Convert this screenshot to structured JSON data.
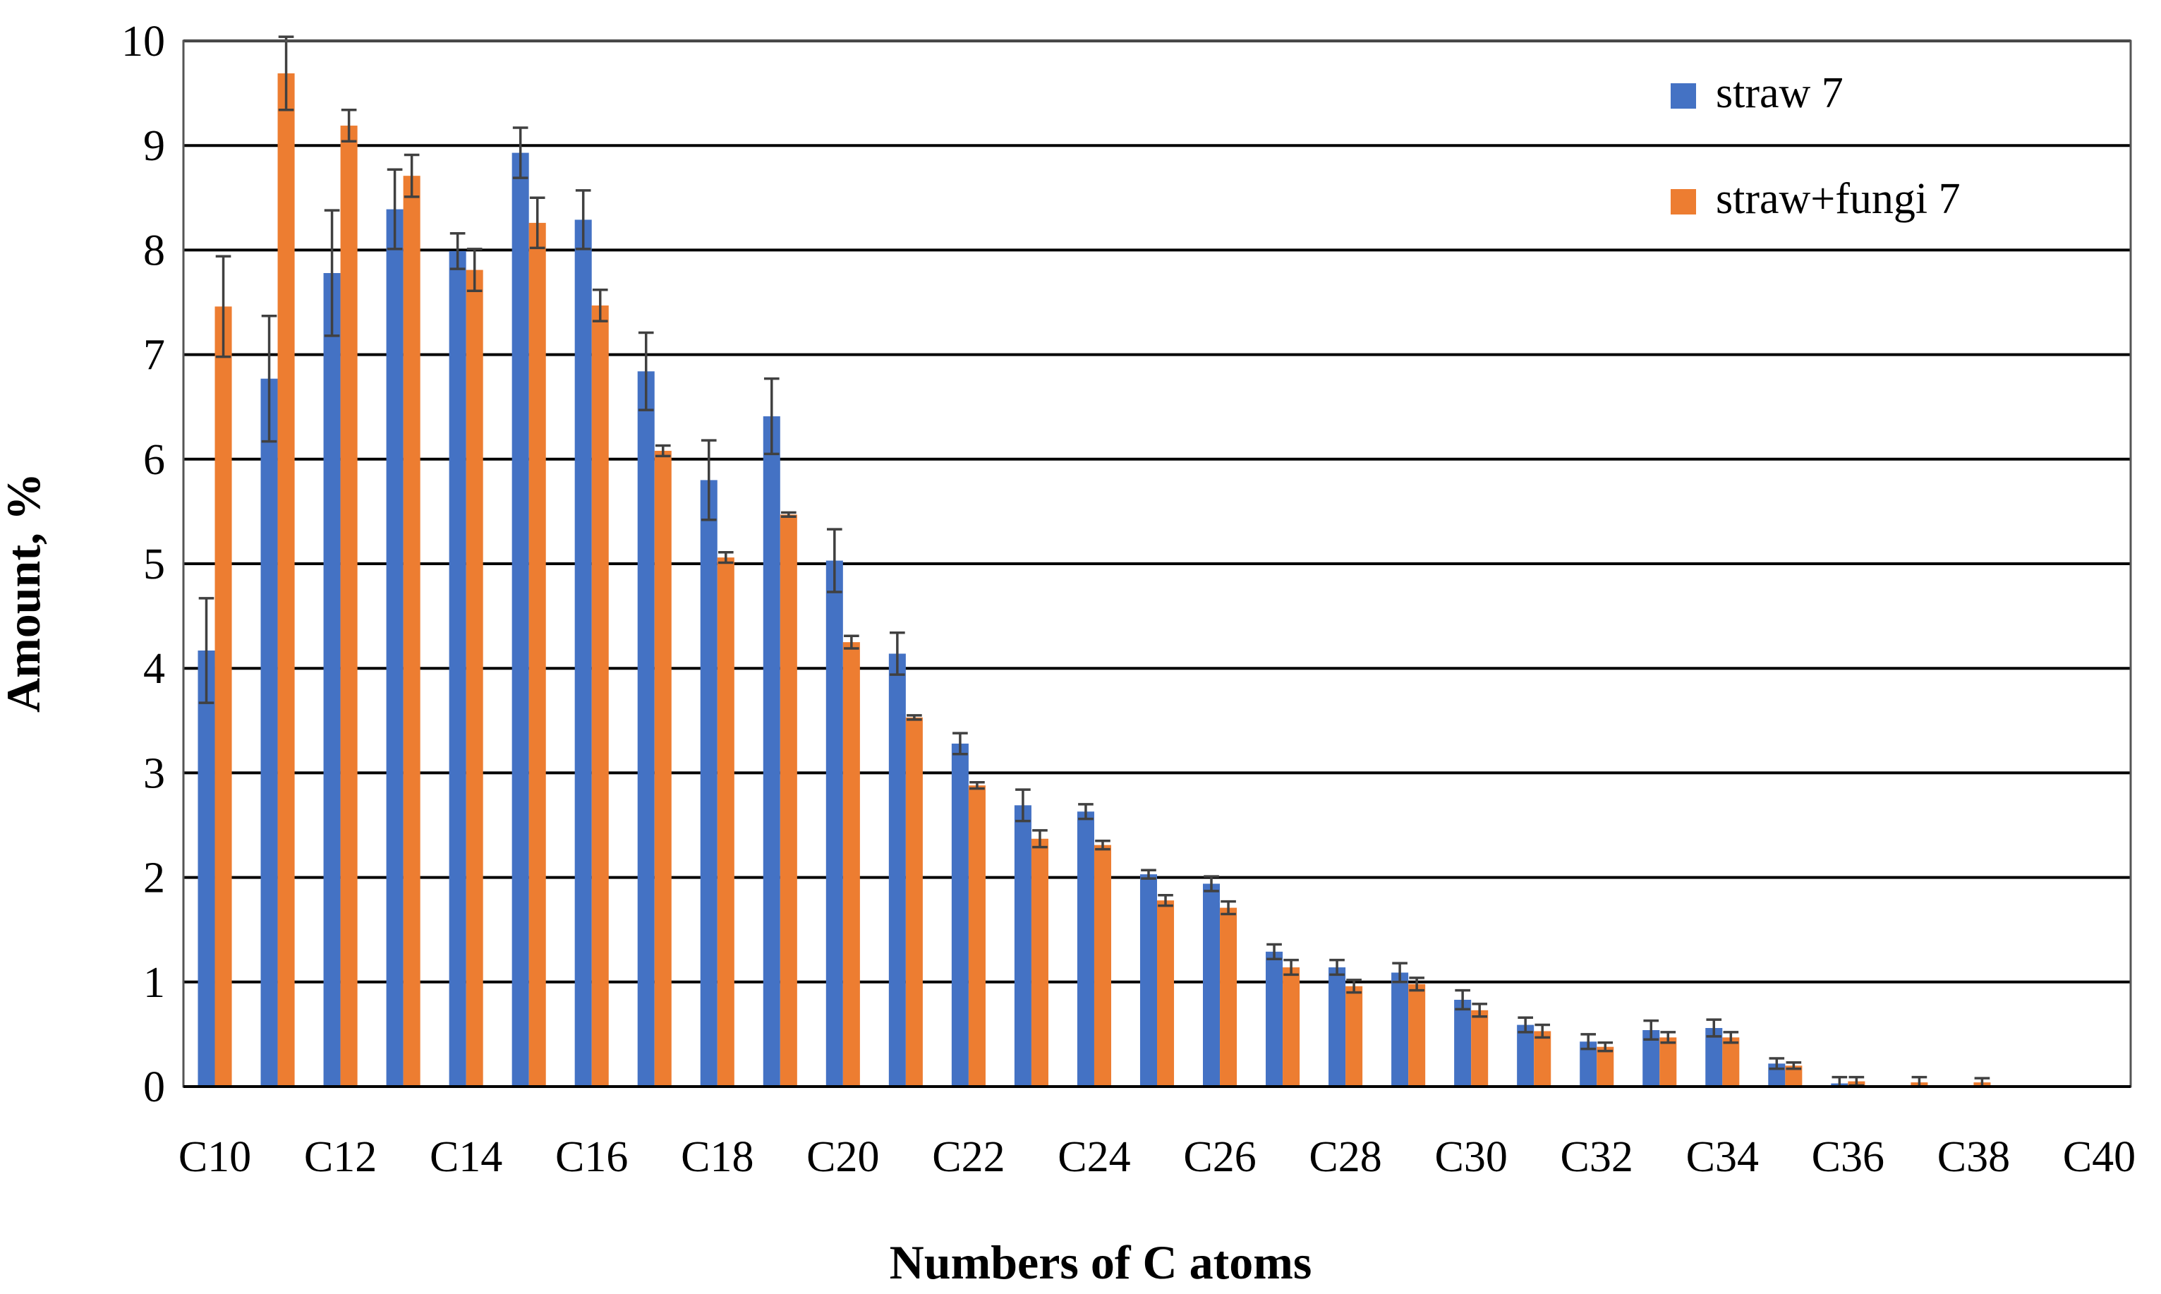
{
  "chart_data": {
    "type": "bar",
    "xlabel": "Numbers of C atoms",
    "ylabel": "Amount, %",
    "ylim": [
      0,
      10
    ],
    "yticks": [
      "0",
      "1",
      "2",
      "3",
      "4",
      "5",
      "6",
      "7",
      "8",
      "9",
      "10"
    ],
    "grid": "horizontal",
    "legend_position": "top-right",
    "categories": [
      "C10",
      "C11",
      "C12",
      "C13",
      "C14",
      "C15",
      "C16",
      "C17",
      "C18",
      "C19",
      "C20",
      "C21",
      "C22",
      "C23",
      "C24",
      "C25",
      "C26",
      "C27",
      "C28",
      "C29",
      "C30",
      "C31",
      "C32",
      "C33",
      "C34",
      "C35",
      "C36",
      "C37",
      "C38",
      "C39",
      "C40"
    ],
    "tick_labels": [
      "C10",
      "",
      "C12",
      "",
      "C14",
      "",
      "C16",
      "",
      "C18",
      "",
      "C20",
      "",
      "C22",
      "",
      "C24",
      "",
      "C26",
      "",
      "C28",
      "",
      "C30",
      "",
      "C32",
      "",
      "C34",
      "",
      "C36",
      "",
      "C38",
      "",
      "C40"
    ],
    "series": [
      {
        "name": "straw 7",
        "color": "#4472C4",
        "values": [
          4.17,
          6.77,
          7.78,
          8.39,
          7.99,
          8.93,
          8.29,
          6.84,
          5.8,
          6.41,
          5.03,
          4.14,
          3.28,
          2.69,
          2.63,
          2.03,
          1.94,
          1.29,
          1.14,
          1.09,
          0.83,
          0.59,
          0.43,
          0.54,
          0.56,
          0.22,
          0.03,
          0.0,
          0.0,
          0.0,
          0.0
        ],
        "errors": [
          0.5,
          0.6,
          0.6,
          0.38,
          0.17,
          0.24,
          0.28,
          0.37,
          0.38,
          0.36,
          0.3,
          0.2,
          0.1,
          0.15,
          0.07,
          0.04,
          0.07,
          0.07,
          0.07,
          0.09,
          0.09,
          0.07,
          0.07,
          0.09,
          0.08,
          0.05,
          0.06,
          0.0,
          0.0,
          0.0,
          0.0
        ]
      },
      {
        "name": "straw+fungi 7",
        "color": "#ED7D31",
        "values": [
          7.46,
          9.69,
          9.19,
          8.71,
          7.81,
          8.26,
          7.47,
          6.08,
          5.06,
          5.47,
          4.25,
          3.53,
          2.88,
          2.37,
          2.31,
          1.78,
          1.71,
          1.14,
          0.96,
          0.98,
          0.73,
          0.53,
          0.38,
          0.47,
          0.47,
          0.2,
          0.05,
          0.04,
          0.04,
          0.0,
          0.0
        ],
        "errors": [
          0.48,
          0.35,
          0.15,
          0.2,
          0.2,
          0.24,
          0.15,
          0.05,
          0.05,
          0.02,
          0.06,
          0.02,
          0.03,
          0.08,
          0.04,
          0.05,
          0.06,
          0.07,
          0.06,
          0.06,
          0.06,
          0.06,
          0.04,
          0.05,
          0.05,
          0.03,
          0.04,
          0.05,
          0.04,
          0.0,
          0.0
        ]
      }
    ]
  }
}
